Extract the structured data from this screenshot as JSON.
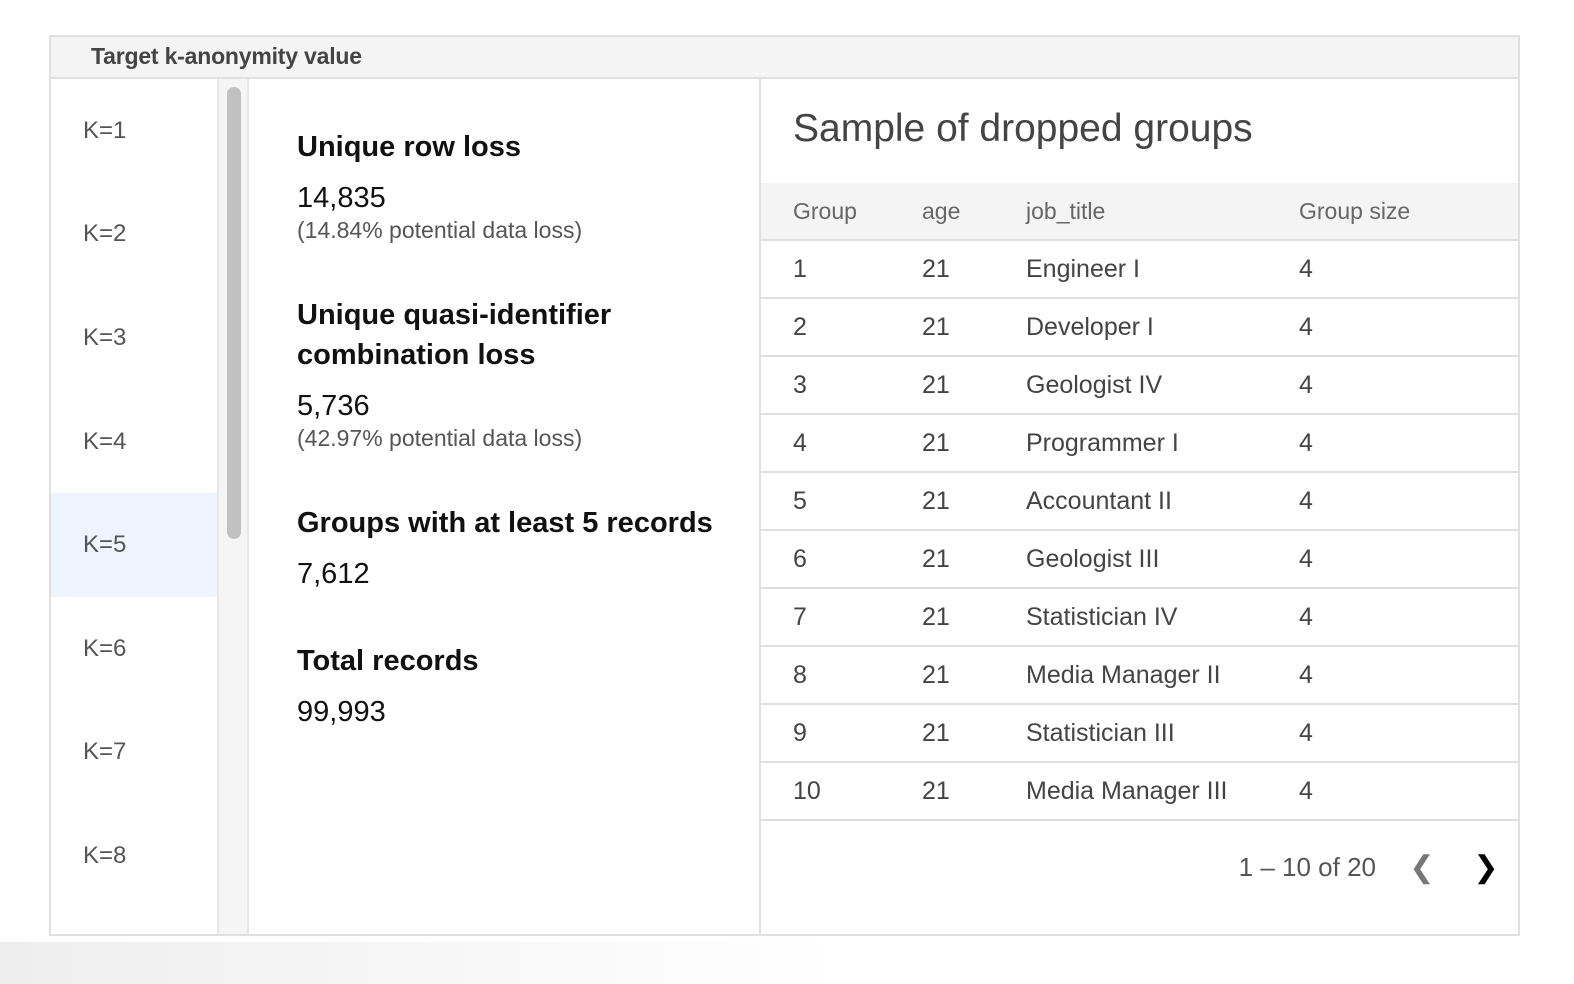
{
  "header": {
    "title": "Target k-anonymity value"
  },
  "k_options": [
    "K=1",
    "K=2",
    "K=3",
    "K=4",
    "K=5",
    "K=6",
    "K=7",
    "K=8"
  ],
  "selected_k": "K=5",
  "stats": {
    "row_loss": {
      "title": "Unique row loss",
      "value": "14,835",
      "sub": "(14.84% potential data loss)"
    },
    "qi_loss": {
      "title": "Unique quasi-identifier combination loss",
      "value": "5,736",
      "sub": "(42.97% potential data loss)"
    },
    "groups": {
      "title": "Groups with at least 5 records",
      "value": "7,612"
    },
    "total": {
      "title": "Total records",
      "value": "99,993"
    }
  },
  "table": {
    "title": "Sample of dropped groups",
    "columns": [
      "Group",
      "age",
      "job_title",
      "Group size"
    ],
    "rows": [
      [
        "1",
        "21",
        "Engineer I",
        "4"
      ],
      [
        "2",
        "21",
        "Developer I",
        "4"
      ],
      [
        "3",
        "21",
        "Geologist IV",
        "4"
      ],
      [
        "4",
        "21",
        "Programmer I",
        "4"
      ],
      [
        "5",
        "21",
        "Accountant II",
        "4"
      ],
      [
        "6",
        "21",
        "Geologist III",
        "4"
      ],
      [
        "7",
        "21",
        "Statistician IV",
        "4"
      ],
      [
        "8",
        "21",
        "Media Manager II",
        "4"
      ],
      [
        "9",
        "21",
        "Statistician III",
        "4"
      ],
      [
        "10",
        "21",
        "Media Manager III",
        "4"
      ]
    ],
    "pagination": "1 – 10 of 20",
    "prev_icon": "chevron-left-icon",
    "next_icon": "chevron-right-icon"
  }
}
